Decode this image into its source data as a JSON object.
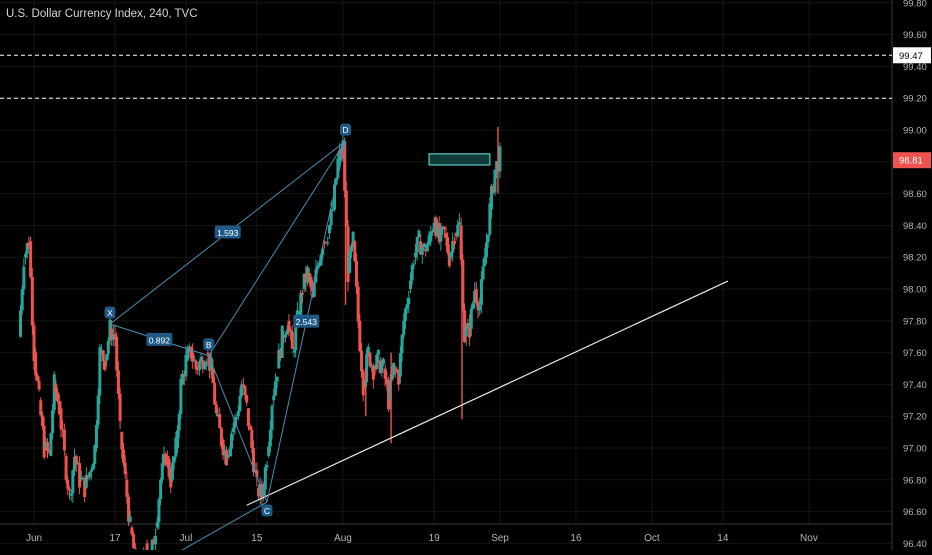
{
  "header": {
    "title": "U.S. Dollar Currency Index, 240, TVC"
  },
  "colors": {
    "up": "#26a69a",
    "down": "#ef5350",
    "grid": "#151515",
    "axis_text": "#b2b5be",
    "pattern": "#4a8fb5",
    "label_bg": "#1e5a85",
    "level_line": "#ffffff",
    "trendline": "#e8e8e8",
    "box_stroke": "#5ad0c4",
    "box_fill": "#0f3a38",
    "price_badge": "#ef5350"
  },
  "chart_data": {
    "type": "candlestick",
    "title": "U.S. Dollar Currency Index, 240, TVC",
    "ylim": [
      96.3,
      99.95
    ],
    "y_ticks": [
      "96.40",
      "96.60",
      "96.80",
      "97.00",
      "97.20",
      "97.40",
      "97.60",
      "97.80",
      "98.00",
      "98.20",
      "98.40",
      "98.60",
      "98.80",
      "99.00",
      "99.20",
      "99.40",
      "99.60",
      "99.80"
    ],
    "x_ticks": [
      "Jun",
      "17",
      "Jul",
      "15",
      "Aug",
      "19",
      "Sep",
      "16",
      "Oct",
      "14",
      "Nov"
    ],
    "x_tick_days": [
      0,
      16,
      30,
      44,
      61,
      79,
      92,
      107,
      122,
      136,
      153
    ],
    "current_price": {
      "label": "98.81",
      "value": 98.81
    },
    "horizontal_levels": [
      {
        "label": "99.47",
        "value": 99.47,
        "style": "dashed"
      },
      {
        "label": "99.20",
        "value": 99.2,
        "style": "dashed"
      }
    ],
    "trendline": {
      "from": {
        "day": 42,
        "value": 96.64
      },
      "to": {
        "day": 137,
        "value": 98.05
      }
    },
    "target_box": {
      "day_from": 78,
      "day_to": 90,
      "low": 98.78,
      "high": 98.85
    },
    "harmonic_pattern": {
      "points": [
        {
          "label": "X",
          "day": 15,
          "value": 97.78
        },
        {
          "label": "B",
          "day": 34.5,
          "value": 97.58
        },
        {
          "label": "C",
          "day": 46,
          "value": 96.66
        },
        {
          "label": "D",
          "day": 61.5,
          "value": 98.93
        }
      ],
      "ratios": [
        {
          "label": "0.892",
          "from": "X",
          "to": "B"
        },
        {
          "label": "1.593",
          "from": "X",
          "to": "D"
        },
        {
          "label": "2.543",
          "from": "C",
          "to": "D"
        }
      ],
      "extra_leg_start": {
        "day": 26,
        "value": 96.3
      }
    },
    "price_path": [
      [
        -3,
        97.7
      ],
      [
        -2,
        98.2
      ],
      [
        -1,
        98.3
      ],
      [
        0,
        97.6
      ],
      [
        1,
        97.3
      ],
      [
        2,
        97.0
      ],
      [
        3,
        96.95
      ],
      [
        4,
        97.4
      ],
      [
        5,
        97.25
      ],
      [
        6,
        96.95
      ],
      [
        7,
        96.7
      ],
      [
        8,
        96.95
      ],
      [
        9,
        96.8
      ],
      [
        10,
        96.75
      ],
      [
        11,
        96.85
      ],
      [
        12,
        97.0
      ],
      [
        13,
        97.6
      ],
      [
        14,
        97.55
      ],
      [
        15,
        97.75
      ],
      [
        16,
        97.7
      ],
      [
        17,
        97.1
      ],
      [
        18,
        96.8
      ],
      [
        19,
        96.5
      ],
      [
        20,
        96.3
      ],
      [
        21,
        96.2
      ],
      [
        22,
        96.4
      ],
      [
        23,
        96.3
      ],
      [
        24,
        96.5
      ],
      [
        25,
        96.8
      ],
      [
        26,
        96.95
      ],
      [
        27,
        96.8
      ],
      [
        28,
        97.0
      ],
      [
        29,
        97.4
      ],
      [
        30,
        97.55
      ],
      [
        31,
        97.6
      ],
      [
        32,
        97.5
      ],
      [
        33,
        97.55
      ],
      [
        34,
        97.6
      ],
      [
        35,
        97.5
      ],
      [
        36,
        97.2
      ],
      [
        37,
        97.05
      ],
      [
        38,
        96.95
      ],
      [
        39,
        97.1
      ],
      [
        40,
        97.2
      ],
      [
        41,
        97.4
      ],
      [
        42,
        97.25
      ],
      [
        43,
        97.0
      ],
      [
        44,
        96.75
      ],
      [
        45,
        96.7
      ],
      [
        46,
        96.95
      ],
      [
        47,
        97.3
      ],
      [
        48,
        97.5
      ],
      [
        49,
        97.7
      ],
      [
        50,
        97.8
      ],
      [
        51,
        97.6
      ],
      [
        52,
        97.8
      ],
      [
        53,
        98.0
      ],
      [
        54,
        98.1
      ],
      [
        55,
        97.95
      ],
      [
        56,
        98.15
      ],
      [
        57,
        98.3
      ],
      [
        58,
        98.35
      ],
      [
        59,
        98.5
      ],
      [
        60,
        98.8
      ],
      [
        61,
        98.9
      ],
      [
        62,
        98.1
      ],
      [
        63,
        98.3
      ],
      [
        64,
        97.8
      ],
      [
        65,
        97.4
      ],
      [
        66,
        97.6
      ],
      [
        67,
        97.5
      ],
      [
        68,
        97.55
      ],
      [
        69,
        97.5
      ],
      [
        70,
        97.3
      ],
      [
        71,
        97.5
      ],
      [
        72,
        97.45
      ],
      [
        73,
        97.8
      ],
      [
        74,
        98.0
      ],
      [
        75,
        98.2
      ],
      [
        76,
        98.3
      ],
      [
        77,
        98.25
      ],
      [
        78,
        98.3
      ],
      [
        79,
        98.45
      ],
      [
        80,
        98.3
      ],
      [
        81,
        98.35
      ],
      [
        82,
        98.2
      ],
      [
        83,
        98.35
      ],
      [
        84,
        98.4
      ],
      [
        85,
        97.7
      ],
      [
        86,
        97.75
      ],
      [
        87,
        98.0
      ],
      [
        88,
        97.9
      ],
      [
        89,
        98.2
      ],
      [
        90,
        98.5
      ],
      [
        91,
        98.75
      ],
      [
        92,
        98.83
      ]
    ]
  }
}
